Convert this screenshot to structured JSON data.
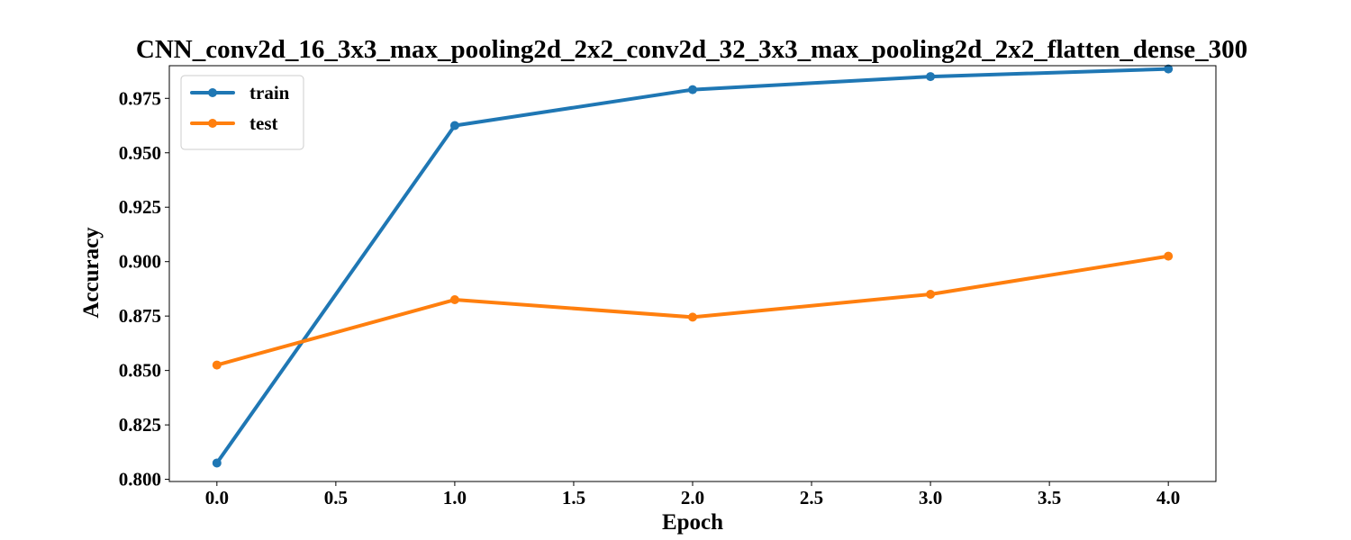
{
  "chart_data": {
    "type": "line",
    "title": "CNN_conv2d_16_3x3_max_pooling2d_2x2_conv2d_32_3x3_max_pooling2d_2x2_flatten_dense_300",
    "xlabel": "Epoch",
    "ylabel": "Accuracy",
    "x": [
      0,
      1,
      2,
      3,
      4
    ],
    "xlim": [
      -0.2,
      4.2
    ],
    "ylim": [
      0.799,
      0.99
    ],
    "xticks": [
      0.0,
      0.5,
      1.0,
      1.5,
      2.0,
      2.5,
      3.0,
      3.5,
      4.0
    ],
    "xtick_labels": [
      "0.0",
      "0.5",
      "1.0",
      "1.5",
      "2.0",
      "2.5",
      "3.0",
      "3.5",
      "4.0"
    ],
    "yticks": [
      0.8,
      0.825,
      0.85,
      0.875,
      0.9,
      0.925,
      0.95,
      0.975
    ],
    "ytick_labels": [
      "0.800",
      "0.825",
      "0.850",
      "0.875",
      "0.900",
      "0.925",
      "0.950",
      "0.975"
    ],
    "grid": false,
    "legend_position": "top-left",
    "series": [
      {
        "name": "train",
        "color": "#1f77b4",
        "values": [
          0.8075,
          0.9625,
          0.979,
          0.985,
          0.9885
        ]
      },
      {
        "name": "test",
        "color": "#ff7f0e",
        "values": [
          0.8525,
          0.8825,
          0.8745,
          0.885,
          0.9025
        ]
      }
    ]
  }
}
